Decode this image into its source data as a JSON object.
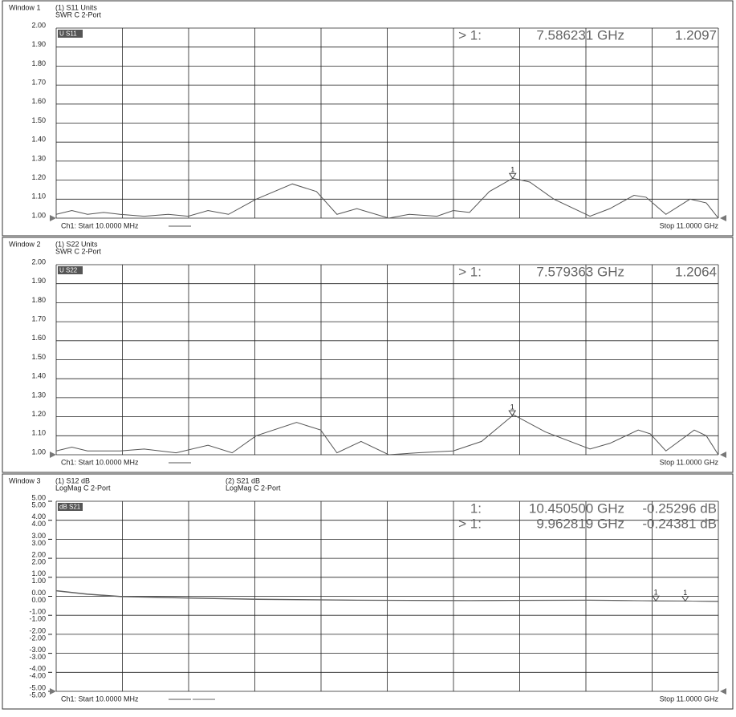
{
  "chart_data": [
    {
      "type": "line",
      "window": "Window 1",
      "format_labels": [
        "SWR C  2-Port"
      ],
      "trace_tag": "U S11",
      "start_label": "Ch1: Start  10.0000 MHz",
      "stop_label": "Stop  11.0000 GHz",
      "xlim": [
        0.01,
        11
      ],
      "ylim": [
        1.0,
        2.0
      ],
      "yticks": [
        {
          "value": 1.0,
          "label": "1.00"
        },
        {
          "value": 1.1,
          "label": "1.10"
        },
        {
          "value": 1.2,
          "label": "1.20"
        },
        {
          "value": 1.3,
          "label": "1.30"
        },
        {
          "value": 1.4,
          "label": "1.40"
        },
        {
          "value": 1.5,
          "label": "1.50"
        },
        {
          "value": 1.6,
          "label": "1.60"
        },
        {
          "value": 1.7,
          "label": "1.70"
        },
        {
          "value": 1.8,
          "label": "1.80"
        },
        {
          "value": 1.9,
          "label": "1.90"
        },
        {
          "value": 2.0,
          "label": "2.00"
        }
      ],
      "grid": true,
      "series": [
        {
          "name": "(1) S11 Units",
          "color": "#555555",
          "x": [
            0.01,
            0.27,
            0.53,
            0.8,
            1.07,
            1.47,
            1.87,
            2.2,
            2.53,
            2.87,
            3.33,
            3.93,
            4.33,
            4.67,
            5.0,
            5.53,
            5.87,
            6.33,
            6.6,
            6.87,
            7.2,
            7.59,
            7.87,
            8.27,
            8.87,
            9.2,
            9.6,
            9.8,
            10.13,
            10.53,
            10.8,
            11.0
          ],
          "values": [
            1.02,
            1.04,
            1.02,
            1.03,
            1.02,
            1.01,
            1.02,
            1.01,
            1.04,
            1.02,
            1.1,
            1.18,
            1.14,
            1.02,
            1.05,
            1.0,
            1.02,
            1.01,
            1.04,
            1.03,
            1.14,
            1.21,
            1.19,
            1.1,
            1.01,
            1.05,
            1.12,
            1.11,
            1.02,
            1.1,
            1.08,
            1.0
          ]
        }
      ],
      "markers": [
        {
          "name": "1",
          "series": 0,
          "x": 7.586231,
          "value": 1.2097,
          "readout": [
            "> 1:",
            "7.586231 GHz",
            "1.2097"
          ]
        }
      ]
    },
    {
      "type": "line",
      "window": "Window 2",
      "format_labels": [
        "SWR C  2-Port"
      ],
      "trace_tag": "U S22",
      "start_label": "Ch1: Start  10.0000 MHz",
      "stop_label": "Stop  11.0000 GHz",
      "xlim": [
        0.01,
        11
      ],
      "ylim": [
        1.0,
        2.0
      ],
      "yticks": [
        {
          "value": 1.0,
          "label": "1.00"
        },
        {
          "value": 1.1,
          "label": "1.10"
        },
        {
          "value": 1.2,
          "label": "1.20"
        },
        {
          "value": 1.3,
          "label": "1.30"
        },
        {
          "value": 1.4,
          "label": "1.40"
        },
        {
          "value": 1.5,
          "label": "1.50"
        },
        {
          "value": 1.6,
          "label": "1.60"
        },
        {
          "value": 1.7,
          "label": "1.70"
        },
        {
          "value": 1.8,
          "label": "1.80"
        },
        {
          "value": 1.9,
          "label": "1.90"
        },
        {
          "value": 2.0,
          "label": "2.00"
        }
      ],
      "grid": true,
      "series": [
        {
          "name": "(1) S22 Units",
          "color": "#555555",
          "x": [
            0.01,
            0.27,
            0.53,
            1.07,
            1.47,
            2.0,
            2.53,
            2.93,
            3.33,
            4.0,
            4.4,
            4.67,
            5.07,
            5.53,
            6.0,
            6.6,
            7.07,
            7.6,
            8.13,
            8.87,
            9.2,
            9.67,
            9.87,
            10.13,
            10.6,
            10.8,
            11.0
          ],
          "values": [
            1.02,
            1.04,
            1.02,
            1.02,
            1.03,
            1.01,
            1.05,
            1.01,
            1.1,
            1.17,
            1.13,
            1.01,
            1.07,
            1.0,
            1.01,
            1.02,
            1.07,
            1.21,
            1.12,
            1.03,
            1.06,
            1.13,
            1.11,
            1.02,
            1.13,
            1.1,
            1.0
          ]
        }
      ],
      "markers": [
        {
          "name": "1",
          "series": 0,
          "x": 7.579363,
          "value": 1.2064,
          "readout": [
            "> 1:",
            "7.579363 GHz",
            "1.2064"
          ]
        }
      ]
    },
    {
      "type": "line",
      "window": "Window 3",
      "format_labels": [
        "LogMag C  2-Port",
        "LogMag C  2-Port"
      ],
      "trace_tag": "dB S21",
      "start_label": "Ch1: Start  10.0000 MHz",
      "stop_label": "Stop  11.0000 GHz",
      "xlim": [
        0.01,
        11
      ],
      "ylim": [
        -5,
        5
      ],
      "y2lim": [
        -5,
        5
      ],
      "yticks": [
        {
          "value": -5,
          "label": "-5.00"
        },
        {
          "value": -4,
          "label": "-4.00"
        },
        {
          "value": -3,
          "label": "-3.00"
        },
        {
          "value": -2,
          "label": "-2.00"
        },
        {
          "value": -1,
          "label": "-1.00"
        },
        {
          "value": 0,
          "label": "0.00"
        },
        {
          "value": 1,
          "label": "1.00"
        },
        {
          "value": 2,
          "label": "2.00"
        },
        {
          "value": 3,
          "label": "3.00"
        },
        {
          "value": 4,
          "label": "4.00"
        },
        {
          "value": 5,
          "label": "5.00"
        }
      ],
      "y2ticks": [
        {
          "value": -5,
          "label": "-5.00"
        },
        {
          "value": -4,
          "label": "-4.00"
        },
        {
          "value": -3,
          "label": "-3.00"
        },
        {
          "value": -2,
          "label": "-2.00"
        },
        {
          "value": -1,
          "label": "-1.00"
        },
        {
          "value": 0,
          "label": "0.00"
        },
        {
          "value": 1,
          "label": "1.00"
        },
        {
          "value": 2,
          "label": "2.00"
        },
        {
          "value": 3,
          "label": "3.00"
        },
        {
          "value": 4,
          "label": "4.00"
        },
        {
          "value": 5,
          "label": "5.00"
        }
      ],
      "grid": true,
      "series": [
        {
          "name": "(1) S12 dB",
          "color": "#555555",
          "x": [
            0.01,
            0.53,
            1.07,
            2.2,
            3.33,
            5.0,
            6.87,
            8.87,
            10.0,
            10.45,
            11.0
          ],
          "values": [
            0.3,
            0.12,
            0.0,
            -0.08,
            -0.15,
            -0.2,
            -0.22,
            -0.2,
            -0.24,
            -0.25,
            -0.27
          ]
        },
        {
          "name": "(2) S21 dB",
          "color": "#666666",
          "axis": "y2",
          "x": [
            0.01,
            0.53,
            1.07,
            2.2,
            3.33,
            5.0,
            6.87,
            8.87,
            9.96,
            11.0
          ],
          "values": [
            0.28,
            0.1,
            -0.02,
            -0.1,
            -0.17,
            -0.21,
            -0.23,
            -0.21,
            -0.24,
            -0.26
          ]
        }
      ],
      "markers": [
        {
          "name": "1",
          "series": 0,
          "x": 10.4505,
          "value": -0.25296,
          "readout": [
            "1:",
            "10.450500 GHz",
            "-0.25296 dB"
          ]
        },
        {
          "name": "1",
          "series": 1,
          "x": 9.962819,
          "value": -0.24381,
          "readout": [
            "> 1:",
            "9.962819 GHz",
            "-0.24381 dB"
          ]
        }
      ]
    }
  ]
}
